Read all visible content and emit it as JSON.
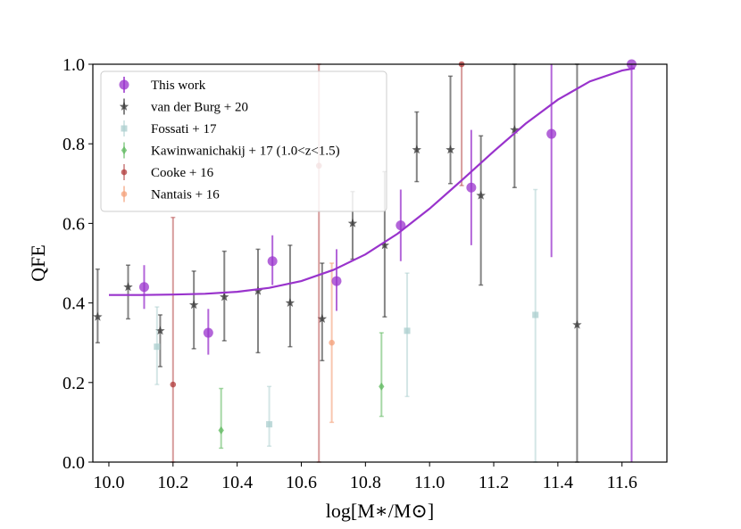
{
  "chart_data": {
    "type": "scatter",
    "xlabel": "log[M∗/M⊙]",
    "ylabel": "QFE",
    "xlim": [
      9.95,
      11.74
    ],
    "ylim": [
      0.0,
      1.0
    ],
    "xticks": [
      "10.0",
      "10.2",
      "10.4",
      "10.6",
      "10.8",
      "11.0",
      "11.2",
      "11.4",
      "11.6"
    ],
    "yticks": [
      "0.0",
      "0.2",
      "0.4",
      "0.6",
      "0.8",
      "1.0"
    ],
    "grid": false,
    "legend_position": "top-left",
    "series": [
      {
        "name": "This work",
        "color": "#9933cc",
        "marker": "circle",
        "points": [
          {
            "x": 10.11,
            "y": 0.44,
            "lo": 0.385,
            "hi": 0.495
          },
          {
            "x": 10.31,
            "y": 0.325,
            "lo": 0.27,
            "hi": 0.385
          },
          {
            "x": 10.51,
            "y": 0.505,
            "lo": 0.445,
            "hi": 0.57
          },
          {
            "x": 10.71,
            "y": 0.455,
            "lo": 0.38,
            "hi": 0.535
          },
          {
            "x": 10.91,
            "y": 0.595,
            "lo": 0.505,
            "hi": 0.685
          },
          {
            "x": 11.13,
            "y": 0.69,
            "lo": 0.545,
            "hi": 0.835
          },
          {
            "x": 11.38,
            "y": 0.825,
            "lo": 0.515,
            "hi": 1.0
          },
          {
            "x": 11.63,
            "y": 1.0,
            "lo": 0.0,
            "hi": 1.0
          }
        ]
      },
      {
        "name": "van der Burg + 20",
        "color": "#333333",
        "marker": "star",
        "points": [
          {
            "x": 9.965,
            "y": 0.365,
            "lo": 0.3,
            "hi": 0.485
          },
          {
            "x": 10.06,
            "y": 0.44,
            "lo": 0.36,
            "hi": 0.495
          },
          {
            "x": 10.16,
            "y": 0.33,
            "lo": 0.24,
            "hi": 0.37
          },
          {
            "x": 10.265,
            "y": 0.395,
            "lo": 0.285,
            "hi": 0.48
          },
          {
            "x": 10.36,
            "y": 0.415,
            "lo": 0.305,
            "hi": 0.53
          },
          {
            "x": 10.465,
            "y": 0.43,
            "lo": 0.275,
            "hi": 0.535
          },
          {
            "x": 10.565,
            "y": 0.4,
            "lo": 0.29,
            "hi": 0.545
          },
          {
            "x": 10.665,
            "y": 0.36,
            "lo": 0.255,
            "hi": 0.5
          },
          {
            "x": 10.76,
            "y": 0.6,
            "lo": 0.51,
            "hi": 0.68
          },
          {
            "x": 10.86,
            "y": 0.545,
            "lo": 0.365,
            "hi": 0.73
          },
          {
            "x": 10.96,
            "y": 0.785,
            "lo": 0.705,
            "hi": 0.88
          },
          {
            "x": 11.065,
            "y": 0.785,
            "lo": 0.7,
            "hi": 0.97
          },
          {
            "x": 11.16,
            "y": 0.67,
            "lo": 0.445,
            "hi": 0.82
          },
          {
            "x": 11.265,
            "y": 0.835,
            "lo": 0.69,
            "hi": 1.0
          },
          {
            "x": 11.46,
            "y": 0.345,
            "lo": 0.0,
            "hi": 1.0
          }
        ]
      },
      {
        "name": "Fossati + 17",
        "color": "#a9cece",
        "marker": "square",
        "points": [
          {
            "x": 10.15,
            "y": 0.29,
            "lo": 0.195,
            "hi": 0.39
          },
          {
            "x": 10.5,
            "y": 0.095,
            "lo": 0.04,
            "hi": 0.19
          },
          {
            "x": 10.93,
            "y": 0.33,
            "lo": 0.165,
            "hi": 0.475
          },
          {
            "x": 11.33,
            "y": 0.37,
            "lo": 0.0,
            "hi": 0.685
          }
        ]
      },
      {
        "name": "Kawinwanichakij + 17 (1.0<z<1.5)",
        "color": "#5cb85c",
        "marker": "diamond",
        "points": [
          {
            "x": 10.35,
            "y": 0.08,
            "lo": 0.035,
            "hi": 0.185
          },
          {
            "x": 10.85,
            "y": 0.19,
            "lo": 0.115,
            "hi": 0.325
          }
        ]
      },
      {
        "name": "Cooke + 16",
        "color": "#b03a3a",
        "marker": "circle-small",
        "points": [
          {
            "x": 10.2,
            "y": 0.195,
            "lo": 0.0,
            "hi": 0.615
          },
          {
            "x": 10.655,
            "y": 0.745,
            "lo": 0.0,
            "hi": 1.0
          },
          {
            "x": 11.1,
            "y": 1.0,
            "lo": 0.695,
            "hi": 1.0
          }
        ]
      },
      {
        "name": "Nantais + 16",
        "color": "#f4a07a",
        "marker": "circle-small",
        "points": [
          {
            "x": 10.695,
            "y": 0.3,
            "lo": 0.1,
            "hi": 0.5
          }
        ]
      }
    ],
    "fit_curve": {
      "color": "#9933cc",
      "x": [
        10.0,
        10.1,
        10.2,
        10.3,
        10.4,
        10.5,
        10.6,
        10.7,
        10.8,
        10.9,
        11.0,
        11.1,
        11.2,
        11.3,
        11.4,
        11.5,
        11.6,
        11.64
      ],
      "y": [
        0.42,
        0.42,
        0.421,
        0.423,
        0.428,
        0.438,
        0.455,
        0.483,
        0.522,
        0.574,
        0.637,
        0.708,
        0.781,
        0.851,
        0.911,
        0.957,
        0.984,
        0.99
      ]
    }
  }
}
